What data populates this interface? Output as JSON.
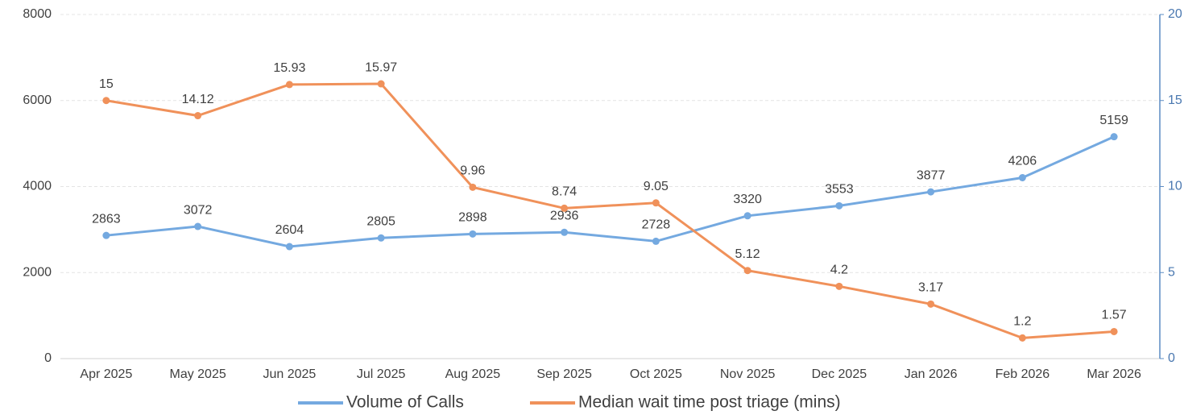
{
  "chart_data": {
    "type": "line",
    "categories": [
      "Apr 2025",
      "May 2025",
      "Jun 2025",
      "Jul 2025",
      "Aug 2025",
      "Sep 2025",
      "Oct 2025",
      "Nov 2025",
      "Dec 2025",
      "Jan 2026",
      "Feb 2026",
      "Mar 2026"
    ],
    "series": [
      {
        "name": "Volume of Calls",
        "color": "#74a9e0",
        "values": [
          2863,
          3072,
          2604,
          2805,
          2898,
          2936,
          2728,
          3320,
          3553,
          3877,
          4206,
          5159
        ]
      },
      {
        "name": "Median wait time post triage (mins)",
        "color": "#f0915a",
        "axis": "y2",
        "values": [
          15,
          14.12,
          15.93,
          15.97,
          9.96,
          8.74,
          9.05,
          5.12,
          4.2,
          3.17,
          1.2,
          1.57
        ]
      }
    ],
    "ylim": [
      0,
      8000
    ],
    "yticks": [
      0,
      2000,
      4000,
      6000,
      8000
    ],
    "y2lim": [
      0,
      20
    ],
    "y2ticks": [
      0,
      5,
      10,
      15,
      20
    ],
    "grid": true,
    "legend": "bottom"
  }
}
